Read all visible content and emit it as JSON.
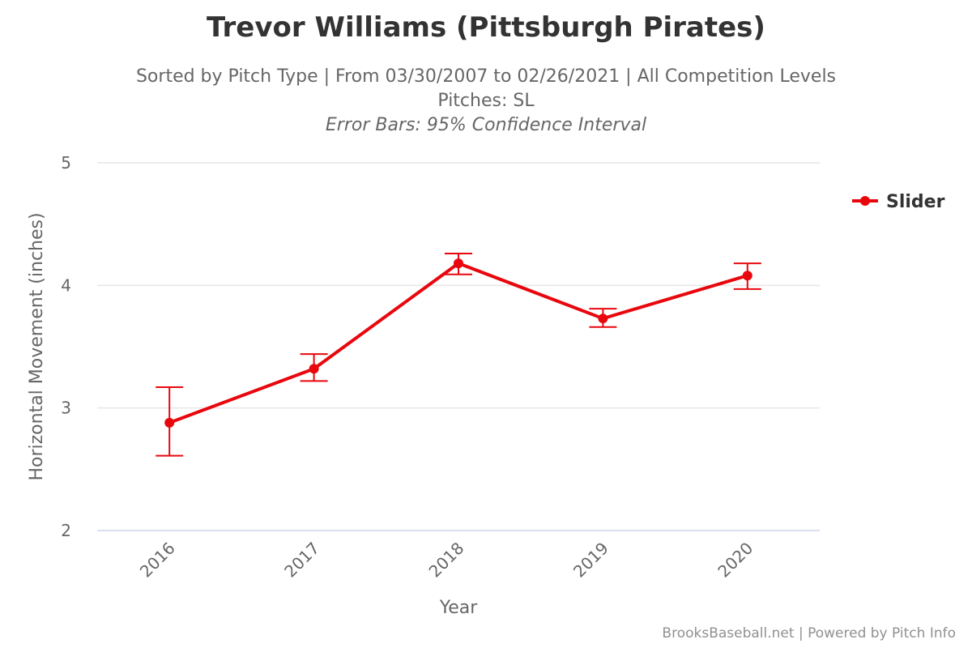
{
  "chart_data": {
    "type": "line",
    "title": "Trevor Williams (Pittsburgh Pirates)",
    "subtitle_lines": [
      "Sorted by Pitch Type | From 03/30/2007 to 02/26/2021 | All Competition Levels",
      "Pitches: SL",
      "Error Bars: 95% Confidence Interval"
    ],
    "xlabel": "Year",
    "ylabel": "Horizontal Movement (inches)",
    "categories": [
      "2016",
      "2017",
      "2018",
      "2019",
      "2020"
    ],
    "ylim": [
      2,
      5
    ],
    "yticks": [
      2,
      3,
      4,
      5
    ],
    "grid": true,
    "legend_position": "right",
    "series": [
      {
        "name": "Slider",
        "color": "#e8070d",
        "values": [
          2.88,
          3.32,
          4.18,
          3.73,
          4.08
        ],
        "error_low": [
          2.61,
          3.22,
          4.09,
          3.66,
          3.97
        ],
        "error_high": [
          3.17,
          3.44,
          4.26,
          3.81,
          4.18
        ]
      }
    ]
  },
  "credits": "BrooksBaseball.net | Powered by Pitch Info"
}
